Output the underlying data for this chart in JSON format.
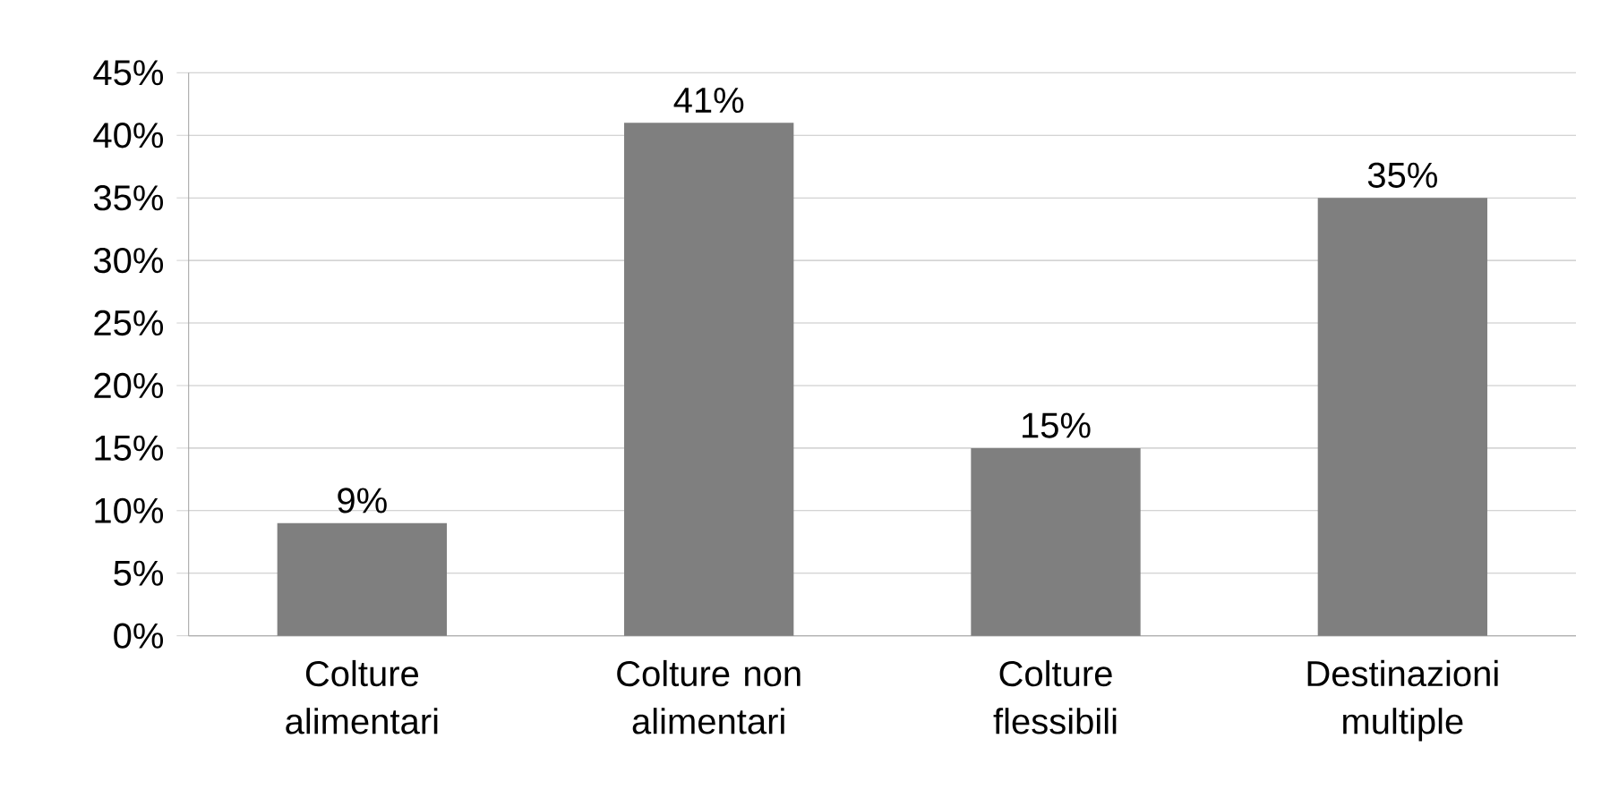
{
  "chart_data": {
    "type": "bar",
    "categories": [
      "Colture alimentari",
      "Colture non alimentari",
      "Colture flessibili",
      "Destinazioni multiple"
    ],
    "values": [
      9,
      41,
      15,
      35
    ],
    "value_labels": [
      "9%",
      "41%",
      "15%",
      "35%"
    ],
    "color": "#7f7f7f",
    "ylim": [
      0,
      45
    ],
    "yticks": [
      {
        "value": 0,
        "label": "0%"
      },
      {
        "value": 5,
        "label": "5%"
      },
      {
        "value": 10,
        "label": "10%"
      },
      {
        "value": 15,
        "label": "15%"
      },
      {
        "value": 20,
        "label": "20%"
      },
      {
        "value": 25,
        "label": "25%"
      },
      {
        "value": 30,
        "label": "30%"
      },
      {
        "value": 35,
        "label": "35%"
      },
      {
        "value": 40,
        "label": "40%"
      },
      {
        "value": 45,
        "label": "45%"
      }
    ],
    "grid": "y"
  }
}
